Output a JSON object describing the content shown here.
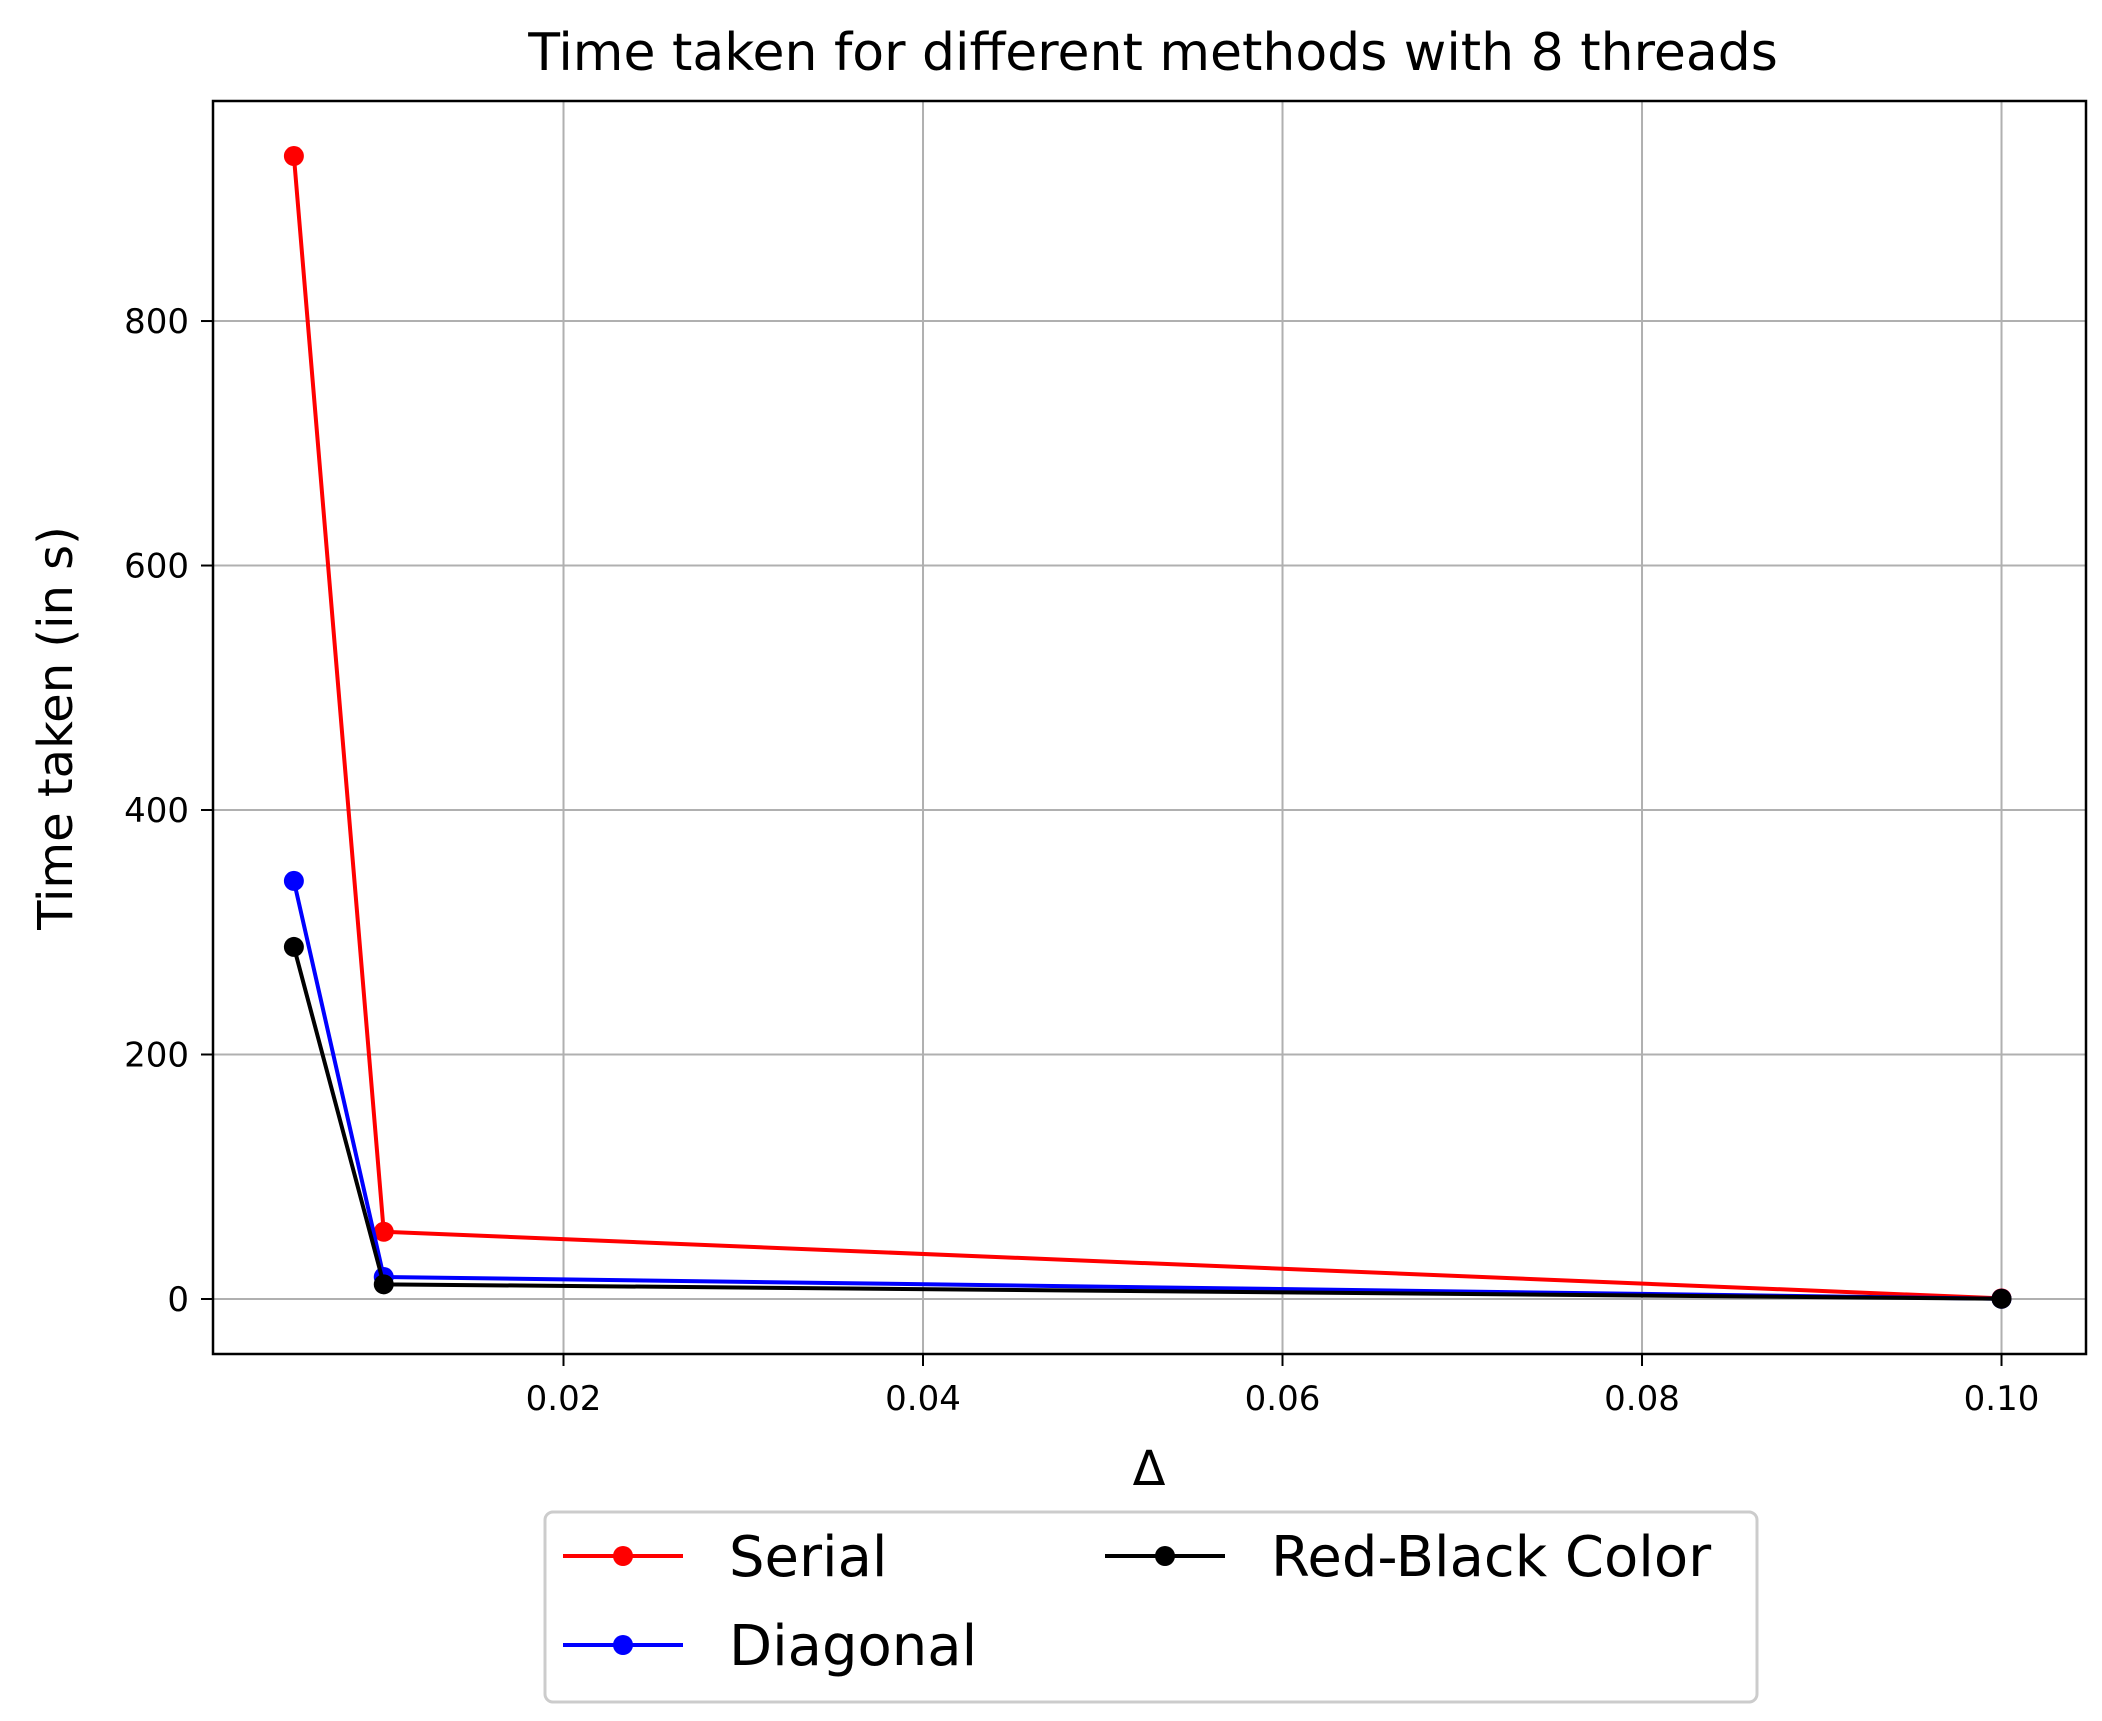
{
  "chart_data": {
    "type": "line",
    "title": "Time taken for different methods with 8 threads",
    "xlabel": "Δ",
    "ylabel": "Time taken (in s)",
    "xlim": [
      0.0005,
      0.1047
    ],
    "ylim": [
      -45,
      980
    ],
    "x_ticks": [
      0.02,
      0.04,
      0.06,
      0.08,
      0.1
    ],
    "x_tick_labels": [
      "0.02",
      "0.04",
      "0.06",
      "0.08",
      "0.10"
    ],
    "y_ticks": [
      0,
      200,
      400,
      600,
      800
    ],
    "y_tick_labels": [
      "0",
      "200",
      "400",
      "600",
      "800"
    ],
    "grid": true,
    "legend": {
      "position": "below-center",
      "columns": 2
    },
    "series": [
      {
        "name": "Serial",
        "color": "#ff0000",
        "x": [
          0.005,
          0.01,
          0.1
        ],
        "y": [
          935,
          55,
          0.5
        ]
      },
      {
        "name": "Diagonal",
        "color": "#0000ff",
        "x": [
          0.005,
          0.01,
          0.1
        ],
        "y": [
          342,
          18,
          0.2
        ]
      },
      {
        "name": "Red-Black Color",
        "color": "#000000",
        "x": [
          0.005,
          0.01,
          0.1
        ],
        "y": [
          288,
          12,
          0.2
        ]
      }
    ]
  }
}
